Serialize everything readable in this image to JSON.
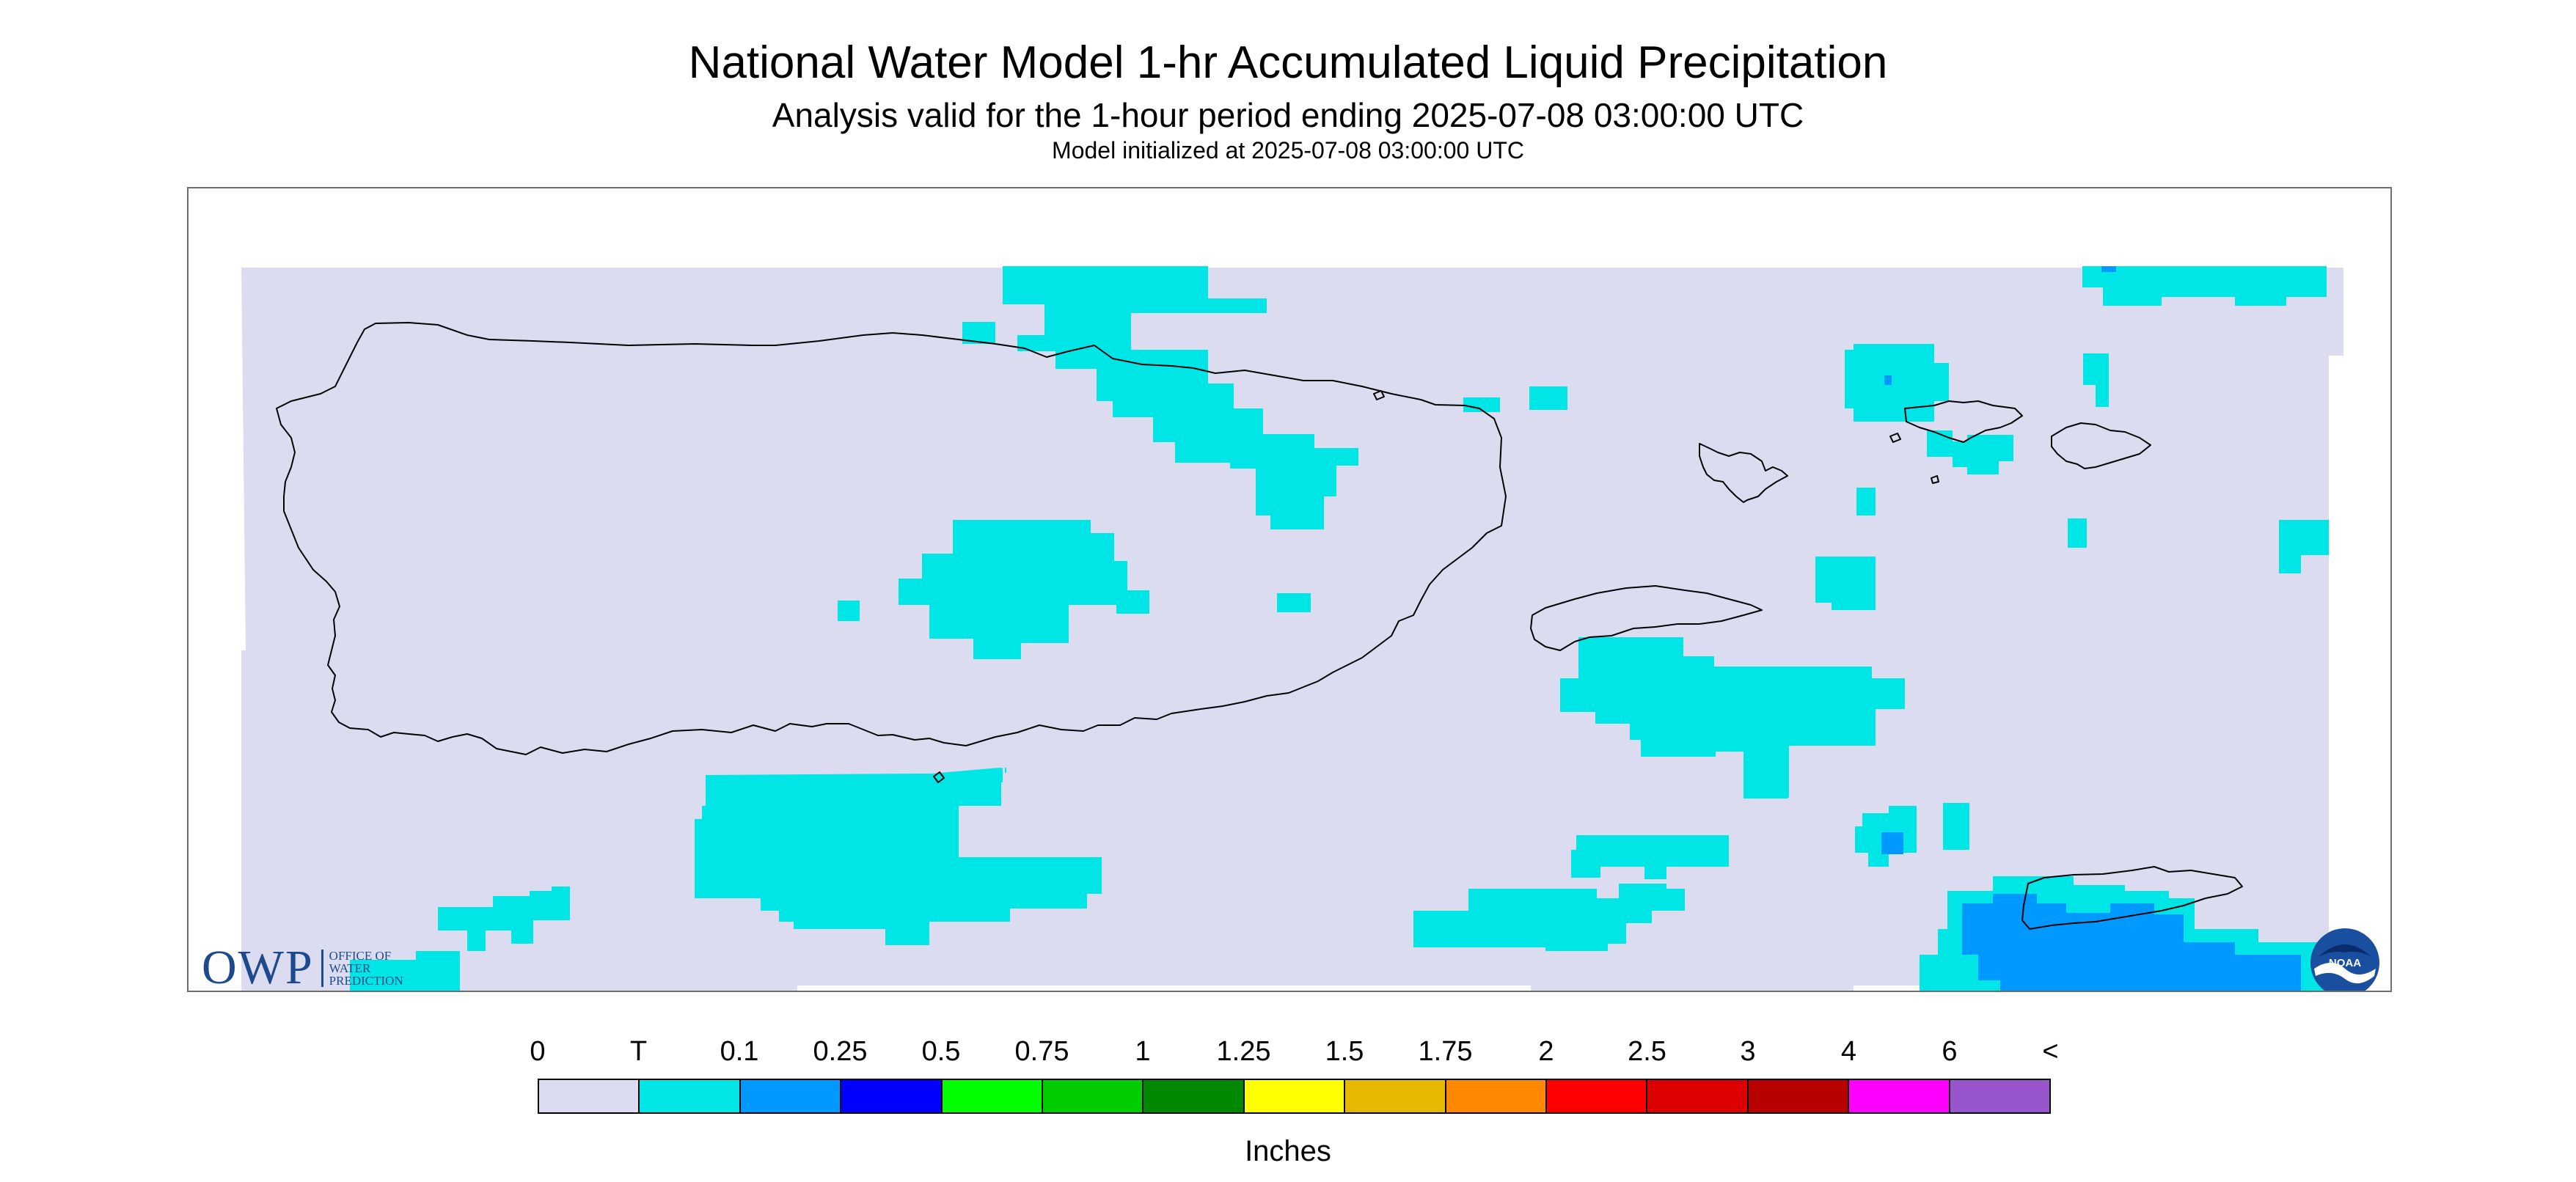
{
  "header": {
    "title": "National Water Model 1-hr Accumulated Liquid Precipitation",
    "subtitle": "Analysis valid for the 1-hour period ending 2025-07-08 03:00:00 UTC",
    "init": "Model initialized at 2025-07-08 03:00:00 UTC"
  },
  "map": {
    "background_color": "#dcdcf0",
    "colors": {
      "trace": "#00e6e6",
      "light": "#0099ff"
    },
    "outline_color": "#000000"
  },
  "logos": {
    "owp": {
      "mark": "OWP",
      "lines": [
        "OFFICE OF",
        "WATER",
        "PREDICTION"
      ]
    },
    "noaa": {
      "text": "NOAA"
    }
  },
  "legend": {
    "labels": [
      "0",
      "T",
      "0.1",
      "0.25",
      "0.5",
      "0.75",
      "1",
      "1.25",
      "1.5",
      "1.75",
      "2",
      "2.5",
      "3",
      "4",
      "6",
      "<"
    ],
    "colors": [
      "#dcdcf0",
      "#00e6e6",
      "#0099ff",
      "#0000ff",
      "#00ff00",
      "#00cc00",
      "#008800",
      "#ffff00",
      "#e6b800",
      "#ff8800",
      "#ff0000",
      "#dd0000",
      "#b80000",
      "#ff00ff",
      "#9955cc"
    ],
    "units": "Inches"
  }
}
